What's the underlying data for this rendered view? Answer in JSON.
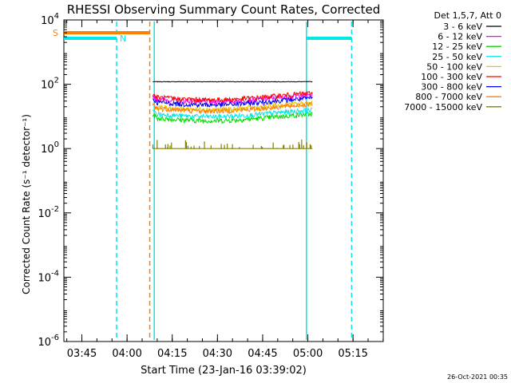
{
  "chart_data": {
    "type": "line",
    "title": "RHESSI Observing Summary Count Rates, Corrected",
    "xlabel": "Start Time (23-Jan-16 03:39:02)",
    "ylabel": "Corrected Count Rate (s⁻¹ detector⁻¹)",
    "y_scale": "log",
    "ylim": [
      1e-06,
      10000.0
    ],
    "y_ticks": [
      {
        "value": 10000.0,
        "base": "10",
        "exp": "4"
      },
      {
        "value": 100.0,
        "base": "10",
        "exp": "2"
      },
      {
        "value": 1.0,
        "base": "10",
        "exp": "0"
      },
      {
        "value": 0.01,
        "base": "10",
        "exp": "-2"
      },
      {
        "value": 0.0001,
        "base": "10",
        "exp": "-4"
      },
      {
        "value": 1e-06,
        "base": "10",
        "exp": "-6"
      }
    ],
    "x_range_minutes": [
      0,
      106
    ],
    "x_ticks": [
      {
        "label": "03:45",
        "minutes": 5.97
      },
      {
        "label": "04:00",
        "minutes": 20.97
      },
      {
        "label": "04:15",
        "minutes": 35.97
      },
      {
        "label": "04:30",
        "minutes": 50.97
      },
      {
        "label": "04:45",
        "minutes": 65.97
      },
      {
        "label": "05:00",
        "minutes": 80.97
      },
      {
        "label": "05:15",
        "minutes": 95.97
      }
    ],
    "legend_header": "Det 1,5,7, Att 0",
    "legend_position": "right",
    "series": [
      {
        "name": "3 - 6 keV",
        "color": "#000000",
        "level": 120
      },
      {
        "name": "6 - 12 keV",
        "color": "#ff00ff",
        "level": 35
      },
      {
        "name": "12 - 25 keV",
        "color": "#00dd00",
        "level": 9
      },
      {
        "name": "25 - 50 keV",
        "color": "#00e8e8",
        "level": 12
      },
      {
        "name": "50 - 100 keV",
        "color": "#e8c800",
        "level": 20
      },
      {
        "name": "100 - 300 keV",
        "color": "#ff0000",
        "level": 40
      },
      {
        "name": "300 - 800 keV",
        "color": "#0000ff",
        "level": 28
      },
      {
        "name": "800 - 7000 keV",
        "color": "#ff8000",
        "level": 18
      },
      {
        "name": "7000 - 15000 keV",
        "color": "#808000",
        "level": 1
      }
    ],
    "data_interval_minutes": [
      29.5,
      82.5
    ],
    "saa_flag": {
      "label": "S",
      "start_minutes": 0,
      "end_minutes": 28.5,
      "color": "#ff8000"
    },
    "night_flags": [
      {
        "label": "N",
        "start_minutes": 0,
        "end_minutes": 17.5,
        "color": "#00e8e8"
      },
      {
        "label": "",
        "start_minutes": 80.5,
        "end_minutes": 95.5,
        "color": "#00e8e8"
      }
    ],
    "vertical_markers": [
      {
        "minutes": 17.5,
        "style": "dashed",
        "color": "#00e8e8"
      },
      {
        "minutes": 28.5,
        "style": "dashed",
        "color": "#ff8000"
      },
      {
        "minutes": 30,
        "style": "solid",
        "color": "#00e8e8"
      },
      {
        "minutes": 80.5,
        "style": "solid",
        "color": "#00e8e8"
      },
      {
        "minutes": 95.5,
        "style": "dashed",
        "color": "#00e8e8"
      }
    ]
  },
  "footer": {
    "timestamp": "26-Oct-2021 00:35"
  }
}
